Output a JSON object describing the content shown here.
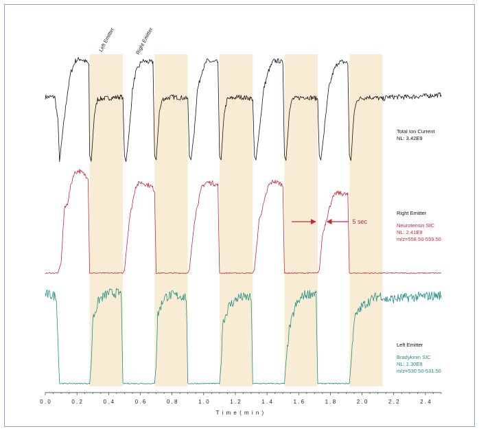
{
  "chart_data": {
    "type": "line",
    "xlabel": "T i m e  ( m i n )",
    "xlim": [
      0.0,
      2.5
    ],
    "x_ticks": [
      "0.0",
      "0.2",
      "0.4",
      "0.6",
      "0.8",
      "1.0",
      "1.2",
      "1.4",
      "1.6",
      "1.8",
      "2.0",
      "2.2",
      "2.4"
    ],
    "grid": false,
    "emitter_bands": [
      {
        "start": 0.28,
        "end": 0.49
      },
      {
        "start": 0.69,
        "end": 0.9
      },
      {
        "start": 1.1,
        "end": 1.31
      },
      {
        "start": 1.51,
        "end": 1.72
      },
      {
        "start": 1.92,
        "end": 2.13
      }
    ],
    "band_headers": [
      "Left Emitter",
      "Right Emitter"
    ],
    "series": [
      {
        "color": "#111111",
        "labels": [
          "Total Ion Current",
          "NL: 3.42E9"
        ],
        "keypoints": [
          [
            0.0,
            0.64
          ],
          [
            0.06,
            0.64
          ],
          [
            0.08,
            0.42
          ],
          [
            0.09,
            0.05
          ],
          [
            0.11,
            0.32
          ],
          [
            0.14,
            0.68
          ],
          [
            0.16,
            0.86
          ],
          [
            0.19,
            0.97
          ],
          [
            0.22,
            0.99
          ],
          [
            0.26,
            0.96
          ],
          [
            0.275,
            0.94
          ],
          [
            0.28,
            0.1
          ],
          [
            0.29,
            0.05
          ],
          [
            0.31,
            0.48
          ],
          [
            0.33,
            0.62
          ],
          [
            0.4,
            0.63
          ],
          [
            0.47,
            0.64
          ],
          [
            0.485,
            0.64
          ],
          [
            0.49,
            0.62
          ],
          [
            0.5,
            0.1
          ],
          [
            0.51,
            0.05
          ],
          [
            0.53,
            0.32
          ],
          [
            0.55,
            0.7
          ],
          [
            0.57,
            0.86
          ],
          [
            0.61,
            0.97
          ],
          [
            0.65,
            0.96
          ],
          [
            0.68,
            0.96
          ],
          [
            0.69,
            0.1
          ],
          [
            0.7,
            0.06
          ],
          [
            0.72,
            0.5
          ],
          [
            0.74,
            0.62
          ],
          [
            0.8,
            0.64
          ],
          [
            0.88,
            0.63
          ],
          [
            0.9,
            0.62
          ],
          [
            0.91,
            0.1
          ],
          [
            0.92,
            0.06
          ],
          [
            0.94,
            0.32
          ],
          [
            0.96,
            0.7
          ],
          [
            0.99,
            0.88
          ],
          [
            1.02,
            0.97
          ],
          [
            1.06,
            0.96
          ],
          [
            1.09,
            0.96
          ],
          [
            1.1,
            0.1
          ],
          [
            1.11,
            0.06
          ],
          [
            1.13,
            0.5
          ],
          [
            1.15,
            0.62
          ],
          [
            1.22,
            0.64
          ],
          [
            1.29,
            0.63
          ],
          [
            1.31,
            0.62
          ],
          [
            1.32,
            0.1
          ],
          [
            1.33,
            0.06
          ],
          [
            1.35,
            0.32
          ],
          [
            1.38,
            0.72
          ],
          [
            1.41,
            0.88
          ],
          [
            1.44,
            0.97
          ],
          [
            1.48,
            0.97
          ],
          [
            1.5,
            0.95
          ],
          [
            1.51,
            0.1
          ],
          [
            1.52,
            0.06
          ],
          [
            1.54,
            0.5
          ],
          [
            1.56,
            0.62
          ],
          [
            1.63,
            0.64
          ],
          [
            1.7,
            0.63
          ],
          [
            1.72,
            0.62
          ],
          [
            1.73,
            0.1
          ],
          [
            1.74,
            0.06
          ],
          [
            1.76,
            0.32
          ],
          [
            1.79,
            0.72
          ],
          [
            1.82,
            0.88
          ],
          [
            1.85,
            0.96
          ],
          [
            1.89,
            0.96
          ],
          [
            1.91,
            0.95
          ],
          [
            1.92,
            0.1
          ],
          [
            1.93,
            0.06
          ],
          [
            1.95,
            0.5
          ],
          [
            1.97,
            0.62
          ],
          [
            2.04,
            0.64
          ],
          [
            2.1,
            0.63
          ],
          [
            2.13,
            0.62
          ],
          [
            2.16,
            0.64
          ],
          [
            2.3,
            0.64
          ],
          [
            2.5,
            0.66
          ]
        ]
      },
      {
        "color": "#c8283a",
        "labels": [
          "Right Emitter",
          "Neurotensin SIC",
          "NL: 2.41E9",
          "m/z=558.50-559.50"
        ],
        "keypoints": [
          [
            0.0,
            0.02
          ],
          [
            0.08,
            0.02
          ],
          [
            0.1,
            0.12
          ],
          [
            0.12,
            0.62
          ],
          [
            0.14,
            0.68
          ],
          [
            0.16,
            0.84
          ],
          [
            0.18,
            0.96
          ],
          [
            0.21,
            0.99
          ],
          [
            0.25,
            0.95
          ],
          [
            0.27,
            0.93
          ],
          [
            0.28,
            0.02
          ],
          [
            0.49,
            0.02
          ],
          [
            0.5,
            0.05
          ],
          [
            0.53,
            0.52
          ],
          [
            0.55,
            0.68
          ],
          [
            0.57,
            0.84
          ],
          [
            0.6,
            0.88
          ],
          [
            0.64,
            0.86
          ],
          [
            0.67,
            0.84
          ],
          [
            0.69,
            0.8
          ],
          [
            0.7,
            0.02
          ],
          [
            0.9,
            0.02
          ],
          [
            0.91,
            0.05
          ],
          [
            0.94,
            0.5
          ],
          [
            0.96,
            0.66
          ],
          [
            0.99,
            0.84
          ],
          [
            1.02,
            0.88
          ],
          [
            1.06,
            0.87
          ],
          [
            1.09,
            0.85
          ],
          [
            1.1,
            0.02
          ],
          [
            1.31,
            0.02
          ],
          [
            1.32,
            0.05
          ],
          [
            1.35,
            0.52
          ],
          [
            1.38,
            0.68
          ],
          [
            1.41,
            0.85
          ],
          [
            1.44,
            0.89
          ],
          [
            1.48,
            0.87
          ],
          [
            1.5,
            0.85
          ],
          [
            1.51,
            0.02
          ],
          [
            1.72,
            0.02
          ],
          [
            1.73,
            0.05
          ],
          [
            1.75,
            0.38
          ],
          [
            1.78,
            0.56
          ],
          [
            1.81,
            0.72
          ],
          [
            1.84,
            0.78
          ],
          [
            1.88,
            0.77
          ],
          [
            1.91,
            0.76
          ],
          [
            1.92,
            0.02
          ],
          [
            2.5,
            0.02
          ]
        ]
      },
      {
        "color": "#1d8f82",
        "labels": [
          "Left Emitter",
          "Bradykinin SIC",
          "NL: 1.30E9",
          "m/z=530.50-531.50"
        ],
        "keypoints": [
          [
            0.0,
            0.85
          ],
          [
            0.04,
            0.84
          ],
          [
            0.07,
            0.83
          ],
          [
            0.08,
            0.4
          ],
          [
            0.09,
            0.02
          ],
          [
            0.28,
            0.02
          ],
          [
            0.29,
            0.2
          ],
          [
            0.3,
            0.62
          ],
          [
            0.34,
            0.8
          ],
          [
            0.4,
            0.86
          ],
          [
            0.46,
            0.86
          ],
          [
            0.48,
            0.85
          ],
          [
            0.49,
            0.02
          ],
          [
            0.69,
            0.02
          ],
          [
            0.7,
            0.2
          ],
          [
            0.71,
            0.66
          ],
          [
            0.75,
            0.82
          ],
          [
            0.8,
            0.84
          ],
          [
            0.86,
            0.83
          ],
          [
            0.89,
            0.82
          ],
          [
            0.9,
            0.02
          ],
          [
            1.1,
            0.02
          ],
          [
            1.11,
            0.2
          ],
          [
            1.12,
            0.58
          ],
          [
            1.16,
            0.74
          ],
          [
            1.22,
            0.82
          ],
          [
            1.28,
            0.82
          ],
          [
            1.3,
            0.81
          ],
          [
            1.31,
            0.02
          ],
          [
            1.51,
            0.02
          ],
          [
            1.52,
            0.22
          ],
          [
            1.54,
            0.52
          ],
          [
            1.58,
            0.74
          ],
          [
            1.63,
            0.84
          ],
          [
            1.69,
            0.86
          ],
          [
            1.71,
            0.85
          ],
          [
            1.72,
            0.02
          ],
          [
            1.92,
            0.02
          ],
          [
            1.93,
            0.2
          ],
          [
            1.95,
            0.62
          ],
          [
            2.0,
            0.74
          ],
          [
            2.08,
            0.82
          ],
          [
            2.12,
            0.84
          ],
          [
            2.15,
            0.8
          ],
          [
            2.3,
            0.82
          ],
          [
            2.5,
            0.84
          ]
        ]
      }
    ],
    "annotation": {
      "text": "5 sec",
      "left_x": 1.72,
      "right_x": 1.77
    }
  }
}
